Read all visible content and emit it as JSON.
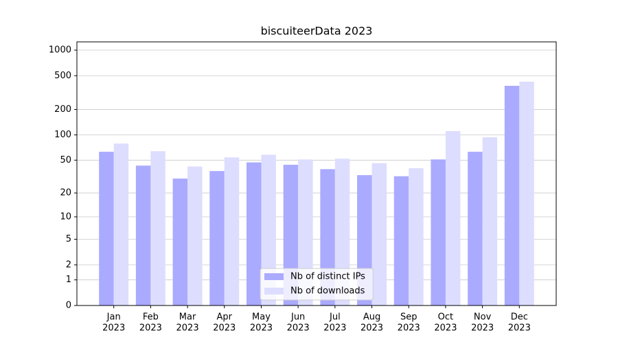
{
  "chart_data": {
    "type": "bar",
    "title": "biscuiteerData 2023",
    "categories": [
      [
        "Jan",
        "2023"
      ],
      [
        "Feb",
        "2023"
      ],
      [
        "Mar",
        "2023"
      ],
      [
        "Apr",
        "2023"
      ],
      [
        "May",
        "2023"
      ],
      [
        "Jun",
        "2023"
      ],
      [
        "Jul",
        "2023"
      ],
      [
        "Aug",
        "2023"
      ],
      [
        "Sep",
        "2023"
      ],
      [
        "Oct",
        "2023"
      ],
      [
        "Nov",
        "2023"
      ],
      [
        "Dec",
        "2023"
      ]
    ],
    "series": [
      {
        "name": "Nb of distinct IPs",
        "color": "#aaaaff",
        "values": [
          63,
          43,
          30,
          37,
          47,
          44,
          39,
          33,
          32,
          51,
          63,
          380
        ]
      },
      {
        "name": "Nb of downloads",
        "color": "#ddddff",
        "values": [
          79,
          64,
          42,
          54,
          58,
          51,
          52,
          46,
          40,
          111,
          94,
          425
        ]
      }
    ],
    "yscale": "log1p",
    "ylim": [
      0,
      1250
    ],
    "yticks": [
      0,
      1,
      2,
      5,
      10,
      20,
      50,
      100,
      200,
      500,
      1000
    ],
    "grid": true,
    "legend": "lower center"
  }
}
